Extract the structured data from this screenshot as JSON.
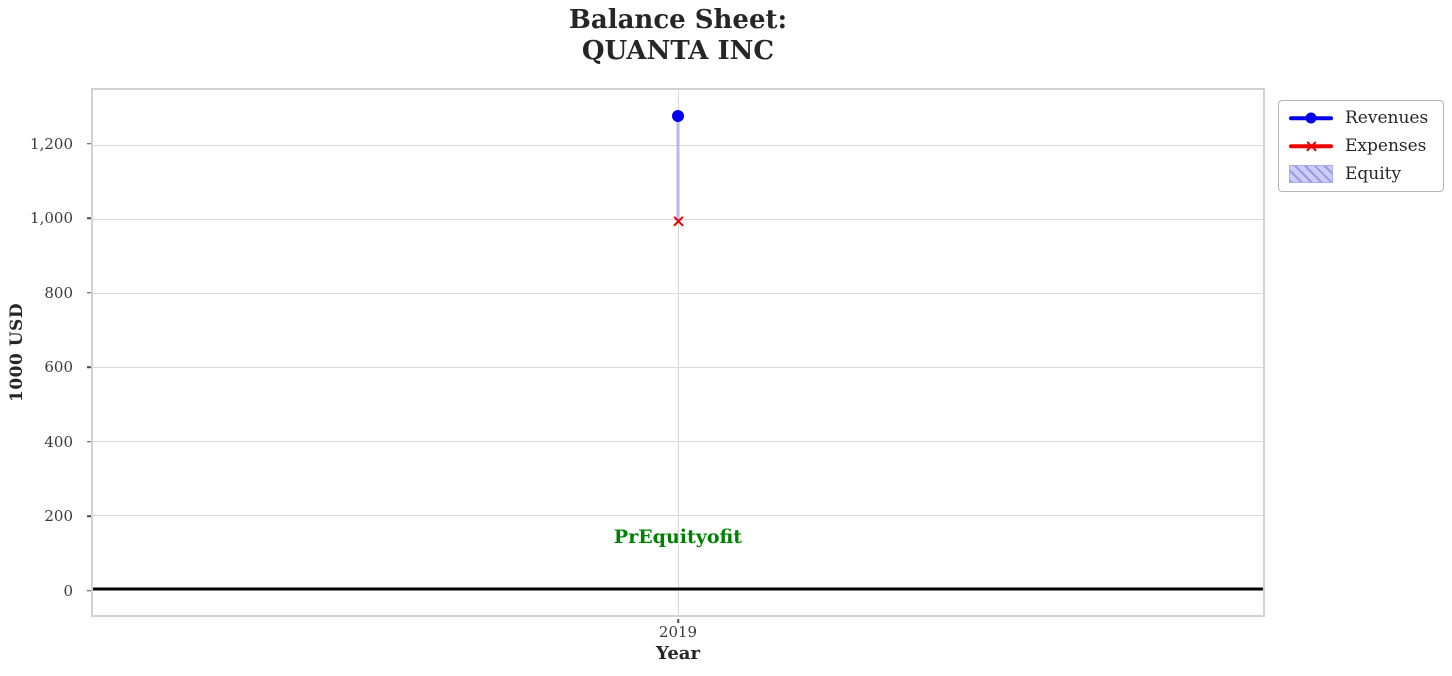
{
  "title": {
    "line1": "Balance Sheet:",
    "line2": "QUANTA INC"
  },
  "axes": {
    "ylabel": "1000 USD",
    "xlabel": "Year"
  },
  "legend": {
    "items": [
      {
        "label": "Revenues",
        "marker": "line-circle",
        "color": "#0000ee"
      },
      {
        "label": "Expenses",
        "marker": "line-x",
        "color": "#ee0000"
      },
      {
        "label": "Equity",
        "marker": "hatched-patch",
        "fill": "#ccccf5",
        "hatch": "#9898e6",
        "edge": "#abaaf0"
      }
    ]
  },
  "chart_data": {
    "type": "mixed",
    "title": "Balance Sheet:\nQUANTA INC",
    "xlabel": "Year",
    "ylabel": "1000 USD",
    "categories": [
      "2019"
    ],
    "xticklabels": [
      "2019"
    ],
    "series": [
      {
        "name": "Revenues",
        "type": "line",
        "marker": "circle",
        "color": "#0000ee",
        "values": [
          1280
        ]
      },
      {
        "name": "Expenses",
        "type": "line",
        "marker": "x",
        "color": "#ee0000",
        "values": [
          995
        ]
      },
      {
        "name": "Equity",
        "type": "bar",
        "fill": "#b8b8ec",
        "hatch": "#9898e6",
        "bottom": 995,
        "top": 1280
      }
    ],
    "ylim": [
      -70,
      1350
    ],
    "yticks": [
      0,
      200,
      400,
      600,
      800,
      1000,
      1200
    ],
    "ytick_labels": [
      "0",
      "200",
      "400",
      "600",
      "800",
      "1,000",
      "1,200"
    ],
    "grid": true,
    "zero_line": {
      "value": 0,
      "color": "#000000"
    },
    "annotation": {
      "text": "PrEquityofit",
      "x": "2019",
      "y": 140,
      "color": "#008000"
    },
    "legend_position": "outside-upper-right"
  }
}
